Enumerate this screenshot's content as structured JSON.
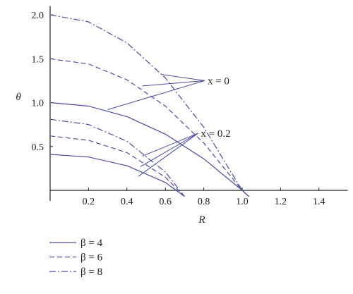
{
  "chart_data": {
    "type": "line",
    "xlabel": "R",
    "ylabel": "θ",
    "xlim": [
      0,
      1.55
    ],
    "ylim": [
      -0.12,
      2.1
    ],
    "xticks": [
      "0.2",
      "0.4",
      "0.6",
      "0.8",
      "1.0",
      "1.2",
      "1.4"
    ],
    "yticks": [
      "0.5",
      "1.0",
      "1.5",
      "2.0"
    ],
    "grid": false,
    "legend_position": "bottom-left",
    "colors": {
      "line": "#4a4aa8",
      "text": "#222222"
    },
    "legend": [
      {
        "label": "β = 4",
        "style": "solid"
      },
      {
        "label": "β = 6",
        "style": "dashed"
      },
      {
        "label": "β = 8",
        "style": "dashdot"
      }
    ],
    "series": [
      {
        "beta": 4,
        "x_value": 0,
        "style": "solid",
        "x": [
          0,
          0.2,
          0.4,
          0.6,
          0.8,
          1.0,
          1.035
        ],
        "y": [
          1.0,
          0.96,
          0.84,
          0.64,
          0.36,
          0.0,
          -0.07
        ]
      },
      {
        "beta": 6,
        "x_value": 0,
        "style": "dashed",
        "x": [
          0,
          0.2,
          0.4,
          0.6,
          0.8,
          1.0,
          1.035
        ],
        "y": [
          1.5,
          1.44,
          1.26,
          0.96,
          0.54,
          0.0,
          -0.07
        ]
      },
      {
        "beta": 8,
        "x_value": 0,
        "style": "dashdot",
        "x": [
          0,
          0.2,
          0.4,
          0.6,
          0.8,
          1.0,
          1.035
        ],
        "y": [
          2.0,
          1.92,
          1.68,
          1.28,
          0.72,
          0.0,
          -0.07
        ]
      },
      {
        "beta": 4,
        "x_value": 0.2,
        "style": "solid",
        "x": [
          0,
          0.2,
          0.4,
          0.6,
          0.7
        ],
        "y": [
          0.41,
          0.38,
          0.28,
          0.09,
          -0.07
        ]
      },
      {
        "beta": 6,
        "x_value": 0.2,
        "style": "dashed",
        "x": [
          0,
          0.2,
          0.4,
          0.6,
          0.7
        ],
        "y": [
          0.62,
          0.57,
          0.43,
          0.15,
          -0.07
        ]
      },
      {
        "beta": 8,
        "x_value": 0.2,
        "style": "dashdot",
        "x": [
          0,
          0.2,
          0.4,
          0.6,
          0.7
        ],
        "y": [
          0.81,
          0.75,
          0.56,
          0.21,
          -0.07
        ]
      }
    ],
    "annotations": [
      {
        "text": "x = 0",
        "anchor": [
          0.805,
          1.25
        ],
        "points": [
          [
            0.3,
            0.92
          ],
          [
            0.48,
            1.19
          ],
          [
            0.58,
            1.32
          ]
        ]
      },
      {
        "text": "x = 0.2",
        "anchor": [
          0.77,
          0.65
        ],
        "points": [
          [
            0.46,
            0.16
          ],
          [
            0.47,
            0.27
          ],
          [
            0.48,
            0.39
          ]
        ]
      }
    ]
  }
}
